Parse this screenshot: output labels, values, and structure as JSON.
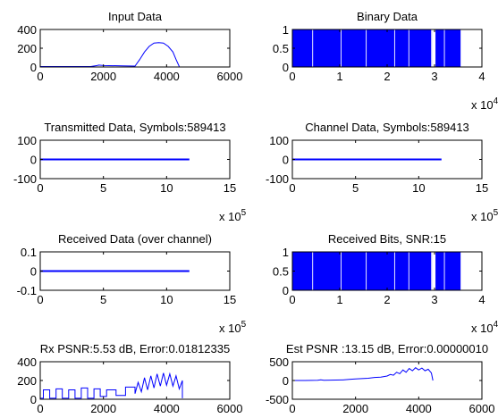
{
  "figure": {
    "line_color": "#0000ff",
    "axes_color": "#000000",
    "background": "#ffffff"
  },
  "chart_data": [
    {
      "type": "line",
      "title": "Input Data",
      "xlim": [
        0,
        6000
      ],
      "ylim": [
        0,
        400
      ],
      "xticks": [
        "0",
        "2000",
        "4000",
        "6000"
      ],
      "yticks": [
        "0",
        "200",
        "400"
      ],
      "exponent": "",
      "series": [
        {
          "style": "line",
          "x": [
            0,
            1000,
            1600,
            1800,
            1850,
            2000,
            2600,
            3000,
            3150,
            3300,
            3450,
            3600,
            3750,
            3900,
            4050,
            4200,
            4300,
            4400
          ],
          "y": [
            5,
            5,
            5,
            15,
            20,
            15,
            12,
            10,
            80,
            160,
            220,
            255,
            260,
            255,
            220,
            160,
            80,
            5
          ]
        }
      ]
    },
    {
      "type": "bar",
      "title": "Binary Data",
      "xlim": [
        0,
        4
      ],
      "ylim": [
        0,
        1
      ],
      "xticks": [
        "0",
        "1",
        "2",
        "3",
        "4"
      ],
      "yticks": [
        "0",
        "0.5",
        "1"
      ],
      "exponent": "x 10^4",
      "series": [
        {
          "style": "band",
          "band": [
            0,
            3.55
          ],
          "gaps": [
            0.42,
            1.02,
            1.55,
            2.15,
            2.45,
            2.93,
            2.96,
            2.99,
            3.2
          ]
        }
      ]
    },
    {
      "type": "line",
      "title": "Transmitted Data, Symbols:589413",
      "xlim": [
        0,
        15
      ],
      "ylim": [
        -100,
        100
      ],
      "xticks": [
        "0",
        "5",
        "10",
        "15"
      ],
      "yticks": [
        "-100",
        "0",
        "100"
      ],
      "exponent": "x 10^5",
      "series": [
        {
          "style": "line",
          "x": [
            0,
            11.8
          ],
          "y": [
            0,
            0
          ]
        }
      ]
    },
    {
      "type": "line",
      "title": "Channel Data, Symbols:589413",
      "xlim": [
        0,
        15
      ],
      "ylim": [
        -100,
        100
      ],
      "xticks": [
        "0",
        "5",
        "10",
        "15"
      ],
      "yticks": [
        "-100",
        "0",
        "100"
      ],
      "exponent": "x 10^5",
      "series": [
        {
          "style": "line",
          "x": [
            0,
            11.8
          ],
          "y": [
            0,
            0
          ]
        }
      ]
    },
    {
      "type": "line",
      "title": "Received Data (over channel)",
      "xlim": [
        0,
        15
      ],
      "ylim": [
        -0.1,
        0.1
      ],
      "xticks": [
        "0",
        "5",
        "10",
        "15"
      ],
      "yticks": [
        "-0.1",
        "0",
        "0.1"
      ],
      "exponent": "x 10^5",
      "series": [
        {
          "style": "line",
          "x": [
            0,
            11.8
          ],
          "y": [
            0,
            0
          ]
        }
      ]
    },
    {
      "type": "bar",
      "title": "Received Bits, SNR:15",
      "xlim": [
        0,
        4
      ],
      "ylim": [
        0,
        1
      ],
      "xticks": [
        "0",
        "1",
        "2",
        "3",
        "4"
      ],
      "yticks": [
        "0",
        "0.5",
        "1"
      ],
      "exponent": "x 10^4",
      "series": [
        {
          "style": "band",
          "band": [
            0,
            3.55
          ],
          "gaps": [
            0.42,
            1.02,
            1.55,
            2.15,
            2.45,
            2.93,
            2.96,
            2.99,
            3.2
          ]
        }
      ]
    },
    {
      "type": "line",
      "title": "Rx PSNR:5.53 dB, Error:0.01812335",
      "xlim": [
        0,
        6000
      ],
      "ylim": [
        0,
        400
      ],
      "xticks": [
        "0",
        "2000",
        "4000",
        "6000"
      ],
      "yticks": [
        "0",
        "200",
        "400"
      ],
      "exponent": "",
      "series": [
        {
          "style": "line",
          "x": [
            0,
            100,
            100,
            300,
            300,
            500,
            500,
            700,
            700,
            900,
            900,
            1100,
            1100,
            1300,
            1300,
            1500,
            1500,
            1700,
            1700,
            1900,
            1900,
            2100,
            2100,
            2400,
            2400,
            2700,
            2700,
            3000,
            3000,
            3100,
            3200,
            3300,
            3400,
            3500,
            3600,
            3700,
            3800,
            3900,
            4000,
            4100,
            4200,
            4300,
            4400,
            4500,
            4500
          ],
          "y": [
            10,
            10,
            100,
            100,
            10,
            10,
            110,
            110,
            10,
            10,
            100,
            100,
            10,
            10,
            120,
            120,
            10,
            10,
            110,
            110,
            30,
            30,
            100,
            100,
            40,
            40,
            130,
            130,
            60,
            180,
            80,
            230,
            100,
            250,
            120,
            270,
            140,
            280,
            150,
            270,
            140,
            250,
            110,
            200,
            10
          ]
        }
      ]
    },
    {
      "type": "line",
      "title": "Est PSNR :13.15 dB, Error:0.00000010",
      "xlim": [
        0,
        6000
      ],
      "ylim": [
        -500,
        500
      ],
      "xticks": [
        "0",
        "2000",
        "4000",
        "6000"
      ],
      "yticks": [
        "-500",
        "0",
        "500"
      ],
      "exponent": "",
      "series": [
        {
          "style": "line",
          "x": [
            0,
            400,
            800,
            900,
            1000,
            1200,
            1600,
            1800,
            2000,
            2200,
            2400,
            2600,
            2800,
            3000,
            3100,
            3200,
            3300,
            3400,
            3500,
            3600,
            3700,
            3800,
            3900,
            4000,
            4100,
            4200,
            4300,
            4400,
            4450
          ],
          "y": [
            0,
            0,
            5,
            20,
            5,
            10,
            15,
            30,
            40,
            50,
            60,
            80,
            90,
            120,
            160,
            140,
            220,
            180,
            280,
            220,
            320,
            260,
            340,
            280,
            330,
            260,
            300,
            200,
            0
          ]
        }
      ]
    }
  ]
}
